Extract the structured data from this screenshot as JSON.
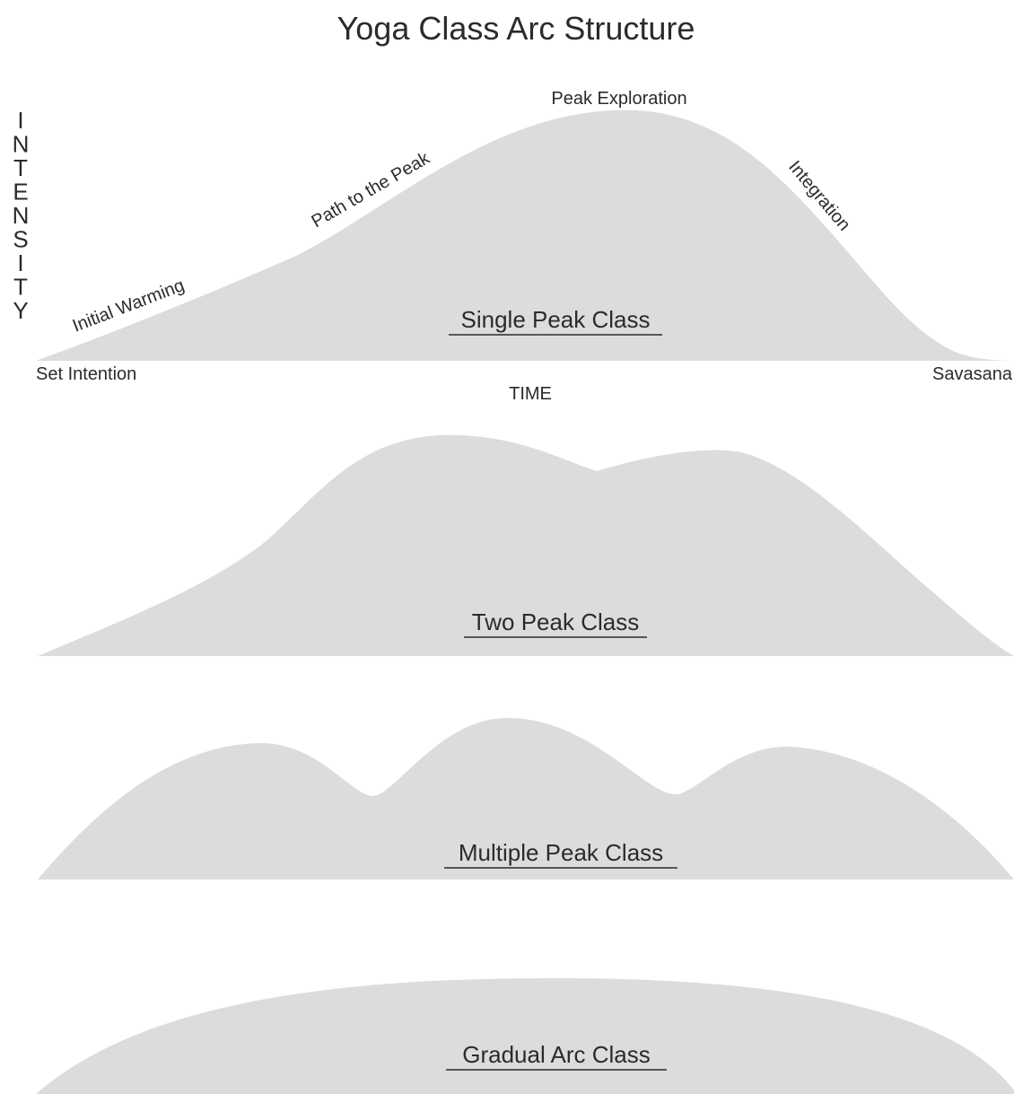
{
  "title": "Yoga Class Arc Structure",
  "axes": {
    "y_label": "INTENSITY",
    "x_label": "TIME"
  },
  "phases": {
    "start": "Set Intention",
    "warming": "Initial Warming",
    "path": "Path to the Peak",
    "peak": "Peak Exploration",
    "integration": "Integration",
    "end": "Savasana"
  },
  "classes": [
    {
      "name": "Single Peak Class"
    },
    {
      "name": "Two Peak Class"
    },
    {
      "name": "Multiple Peak Class"
    },
    {
      "name": "Gradual Arc Class"
    }
  ],
  "colors": {
    "arc_fill": "#dcdcdc",
    "text": "#2b2b2b"
  }
}
